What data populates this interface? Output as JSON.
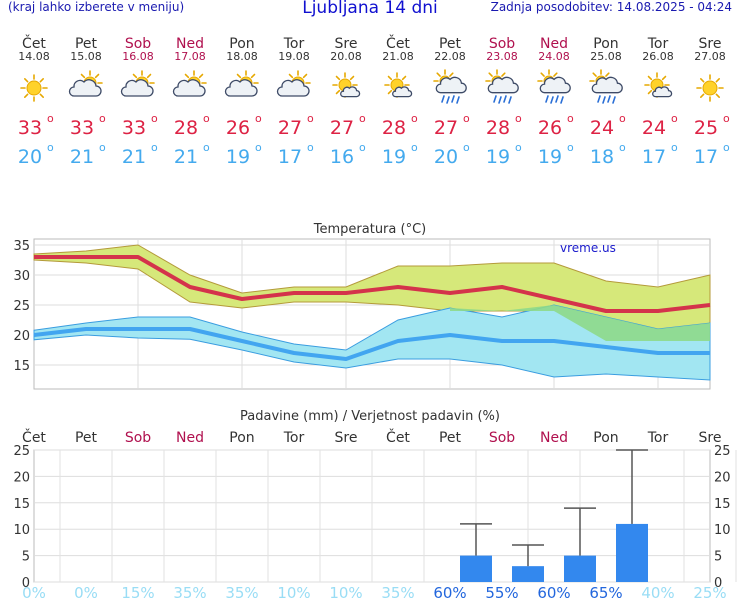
{
  "header": {
    "left_note": "(kraj lahko izberete v meniju)",
    "title": "Ljubljana 14 dni",
    "updated": "Zadnja posodobitev: 14.08.2025 - 04:24"
  },
  "colors": {
    "weekday": "#333333",
    "weekend": "#b0104e",
    "tmax": "#dd2244",
    "tmin": "#44aaee",
    "bar": "#3388ee",
    "prob_low": "#99ddf5",
    "prob_high": "#2266dd",
    "line_max": "#d4334b",
    "band_max": "#d6e87a",
    "line_min": "#42a5f0",
    "band_min": "#a2e6f2",
    "overlap": "#8ed98a"
  },
  "days": [
    {
      "name": "Čet",
      "date": "14.08",
      "weekend": false,
      "icon": "sun-icon",
      "tmax": "33",
      "tmin": "20"
    },
    {
      "name": "Pet",
      "date": "15.08",
      "weekend": false,
      "icon": "partly-cloudy-icon",
      "tmax": "33",
      "tmin": "21"
    },
    {
      "name": "Sob",
      "date": "16.08",
      "weekend": true,
      "icon": "partly-cloudy-icon",
      "tmax": "33",
      "tmin": "21"
    },
    {
      "name": "Ned",
      "date": "17.08",
      "weekend": true,
      "icon": "partly-cloudy-icon",
      "tmax": "28",
      "tmin": "21"
    },
    {
      "name": "Pon",
      "date": "18.08",
      "weekend": false,
      "icon": "partly-cloudy-icon",
      "tmax": "26",
      "tmin": "19"
    },
    {
      "name": "Tor",
      "date": "19.08",
      "weekend": false,
      "icon": "partly-cloudy-icon",
      "tmax": "27",
      "tmin": "17"
    },
    {
      "name": "Sre",
      "date": "20.08",
      "weekend": false,
      "icon": "sun-small-cloud-icon",
      "tmax": "27",
      "tmin": "16"
    },
    {
      "name": "Čet",
      "date": "21.08",
      "weekend": false,
      "icon": "sun-small-cloud-icon",
      "tmax": "28",
      "tmin": "19"
    },
    {
      "name": "Pet",
      "date": "22.08",
      "weekend": false,
      "icon": "sun-cloud-rain-icon",
      "tmax": "27",
      "tmin": "20"
    },
    {
      "name": "Sob",
      "date": "23.08",
      "weekend": true,
      "icon": "sun-cloud-rain-icon",
      "tmax": "28",
      "tmin": "19"
    },
    {
      "name": "Ned",
      "date": "24.08",
      "weekend": true,
      "icon": "sun-cloud-rain-icon",
      "tmax": "26",
      "tmin": "19"
    },
    {
      "name": "Pon",
      "date": "25.08",
      "weekend": false,
      "icon": "sun-cloud-rain-icon",
      "tmax": "24",
      "tmin": "18"
    },
    {
      "name": "Tor",
      "date": "26.08",
      "weekend": false,
      "icon": "sun-small-cloud-icon",
      "tmax": "24",
      "tmin": "17"
    },
    {
      "name": "Sre",
      "date": "27.08",
      "weekend": false,
      "icon": "sun-icon",
      "tmax": "25",
      "tmin": "17"
    }
  ],
  "chart_data": [
    {
      "type": "line",
      "title": "Temperatura (°C)",
      "watermark": "vreme.us",
      "ylim": [
        11,
        36
      ],
      "yticks": [
        "15",
        "20",
        "25",
        "30",
        "35"
      ],
      "grid": true,
      "x": [
        "14.08",
        "15.08",
        "16.08",
        "17.08",
        "18.08",
        "19.08",
        "20.08",
        "21.08",
        "22.08",
        "23.08",
        "24.08",
        "25.08",
        "26.08",
        "27.08"
      ],
      "series": [
        {
          "role": "max",
          "values": [
            33,
            33,
            33,
            28,
            26,
            27,
            27,
            28,
            27,
            28,
            26,
            24,
            24,
            25
          ]
        },
        {
          "role": "max_upper",
          "values": [
            33.5,
            34,
            35,
            30,
            27,
            28,
            28,
            31.5,
            31.5,
            32,
            32,
            29,
            28,
            30
          ]
        },
        {
          "role": "max_lower",
          "values": [
            32.5,
            32,
            31,
            25.5,
            24.5,
            25.5,
            25.5,
            25,
            24,
            24,
            24,
            19,
            19,
            19
          ]
        },
        {
          "role": "min",
          "values": [
            20,
            21,
            21,
            21,
            19,
            17,
            16,
            19,
            20,
            19,
            19,
            18,
            17,
            17
          ]
        },
        {
          "role": "min_upper",
          "values": [
            20.8,
            22,
            23,
            23,
            20.5,
            18.5,
            17.5,
            22.5,
            24.5,
            23,
            25,
            23,
            21,
            22
          ]
        },
        {
          "role": "min_lower",
          "values": [
            19.2,
            20,
            19.5,
            19.3,
            17.5,
            15.5,
            14.5,
            16,
            16,
            15,
            13,
            13.5,
            13,
            12.5
          ]
        }
      ]
    },
    {
      "type": "bar",
      "title": "Padavine (mm) / Verjetnost padavin (%)",
      "ylim": [
        0,
        25
      ],
      "yticks": [
        "0",
        "5",
        "10",
        "15",
        "20",
        "25"
      ],
      "grid": true,
      "categories": [
        "Čet",
        "Pet",
        "Sob",
        "Ned",
        "Pon",
        "Tor",
        "Sre",
        "Čet",
        "Pet",
        "Sob",
        "Ned",
        "Pon",
        "Tor",
        "Sre"
      ],
      "values": [
        0,
        0,
        0,
        0,
        0,
        0,
        0,
        0,
        5,
        3,
        5,
        11,
        0,
        0
      ],
      "error_max": [
        0,
        0,
        0,
        0,
        0,
        0,
        0,
        0,
        11,
        7,
        14,
        25,
        0,
        0
      ],
      "probability": [
        "0%",
        "0%",
        "15%",
        "35%",
        "35%",
        "10%",
        "10%",
        "35%",
        "60%",
        "55%",
        "60%",
        "65%",
        "40%",
        "25%"
      ]
    }
  ]
}
